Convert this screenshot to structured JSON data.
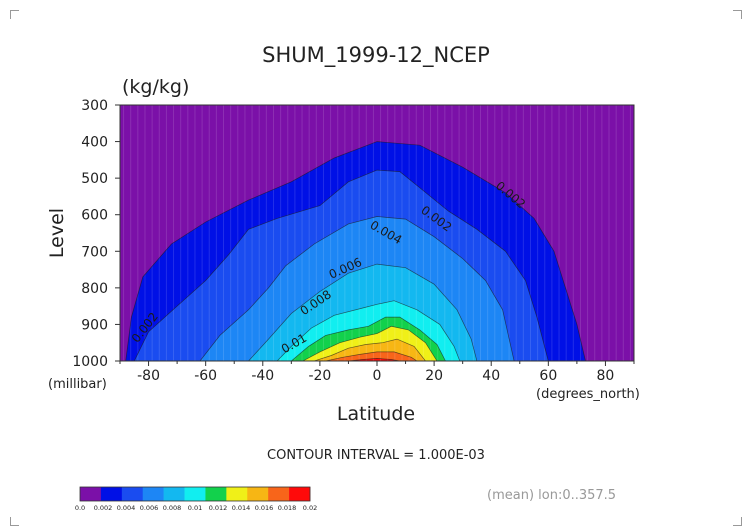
{
  "chart_data": {
    "type": "contour",
    "title": "SHUM_1999-12_NCEP",
    "units": "(kg/kg)",
    "xlabel": "Latitude",
    "ylabel": "Level",
    "x_unit": "(degrees_north)",
    "y_unit": "(millibar)",
    "xlim": [
      -90,
      90
    ],
    "ylim": [
      300,
      1000
    ],
    "x_ticks": [
      -80,
      -60,
      -40,
      -20,
      0,
      20,
      40,
      60,
      80
    ],
    "y_ticks": [
      300,
      400,
      500,
      600,
      700,
      800,
      900,
      1000
    ],
    "contour_interval_text": "CONTOUR INTERVAL = 1.000E-03",
    "subtitle_right": "(mean) lon:0..357.5",
    "levels": [
      0.0,
      0.002,
      0.004,
      0.006,
      0.008,
      0.01,
      0.012,
      0.014,
      0.016,
      0.018,
      0.02
    ],
    "level_labels": [
      "0.0",
      "0.002",
      "0.004",
      "0.006",
      "0.008",
      "0.01",
      "0.012",
      "0.014",
      "0.016",
      "0.018",
      "0.02"
    ],
    "colors": [
      "#7b10a8",
      "#0010e6",
      "#1a4cf0",
      "#1d86f5",
      "#13b8f0",
      "#11eef0",
      "#12d14c",
      "#f0f018",
      "#f7b614",
      "#f8651a",
      "#ff0a0a"
    ],
    "contour_labels": [
      "0.002",
      "0.004",
      "0.006",
      "0.008",
      "0.01",
      "0.002",
      "0.002"
    ],
    "boundaries": [
      {
        "level": 0.002,
        "points": [
          [
            -88,
            1000
          ],
          [
            -86,
            880
          ],
          [
            -82,
            770
          ],
          [
            -72,
            680
          ],
          [
            -60,
            620
          ],
          [
            -45,
            560
          ],
          [
            -30,
            510
          ],
          [
            -15,
            445
          ],
          [
            0,
            400
          ],
          [
            15,
            410
          ],
          [
            30,
            470
          ],
          [
            45,
            540
          ],
          [
            55,
            610
          ],
          [
            62,
            700
          ],
          [
            66,
            800
          ],
          [
            70,
            900
          ],
          [
            73,
            1000
          ]
        ]
      },
      {
        "level": 0.004,
        "points": [
          [
            -85,
            1000
          ],
          [
            -80,
            920
          ],
          [
            -70,
            850
          ],
          [
            -60,
            780
          ],
          [
            -52,
            710
          ],
          [
            -45,
            640
          ],
          [
            -35,
            610
          ],
          [
            -20,
            575
          ],
          [
            -10,
            510
          ],
          [
            0,
            478
          ],
          [
            8,
            482
          ],
          [
            14,
            520
          ],
          [
            25,
            590
          ],
          [
            35,
            640
          ],
          [
            45,
            700
          ],
          [
            52,
            780
          ],
          [
            56,
            880
          ],
          [
            60,
            1000
          ]
        ]
      },
      {
        "level": 0.006,
        "points": [
          [
            -62,
            1000
          ],
          [
            -55,
            930
          ],
          [
            -45,
            860
          ],
          [
            -38,
            800
          ],
          [
            -32,
            740
          ],
          [
            -22,
            680
          ],
          [
            -10,
            625
          ],
          [
            0,
            605
          ],
          [
            10,
            612
          ],
          [
            20,
            660
          ],
          [
            30,
            720
          ],
          [
            38,
            780
          ],
          [
            44,
            860
          ],
          [
            48,
            1000
          ]
        ]
      },
      {
        "level": 0.008,
        "points": [
          [
            -45,
            1000
          ],
          [
            -38,
            940
          ],
          [
            -30,
            870
          ],
          [
            -20,
            810
          ],
          [
            -10,
            760
          ],
          [
            0,
            735
          ],
          [
            10,
            745
          ],
          [
            20,
            790
          ],
          [
            28,
            860
          ],
          [
            33,
            940
          ],
          [
            35,
            1000
          ]
        ]
      },
      {
        "level": 0.01,
        "points": [
          [
            -35,
            1000
          ],
          [
            -30,
            960
          ],
          [
            -23,
            910
          ],
          [
            -15,
            875
          ],
          [
            -5,
            855
          ],
          [
            0,
            845
          ],
          [
            6,
            835
          ],
          [
            14,
            860
          ],
          [
            22,
            900
          ],
          [
            27,
            960
          ],
          [
            29,
            1000
          ]
        ]
      },
      {
        "level": 0.012,
        "points": [
          [
            -30,
            1000
          ],
          [
            -24,
            960
          ],
          [
            -18,
            930
          ],
          [
            -10,
            915
          ],
          [
            -3,
            905
          ],
          [
            3,
            880
          ],
          [
            8,
            880
          ],
          [
            15,
            915
          ],
          [
            21,
            955
          ],
          [
            24,
            1000
          ]
        ]
      },
      {
        "level": 0.014,
        "points": [
          [
            -26,
            1000
          ],
          [
            -20,
            975
          ],
          [
            -13,
            950
          ],
          [
            -6,
            935
          ],
          [
            0,
            925
          ],
          [
            5,
            905
          ],
          [
            11,
            915
          ],
          [
            17,
            950
          ],
          [
            21,
            1000
          ]
        ]
      },
      {
        "level": 0.016,
        "points": [
          [
            -22,
            1000
          ],
          [
            -16,
            985
          ],
          [
            -10,
            965
          ],
          [
            -4,
            955
          ],
          [
            2,
            950
          ],
          [
            7,
            940
          ],
          [
            13,
            960
          ],
          [
            17,
            1000
          ]
        ]
      },
      {
        "level": 0.018,
        "points": [
          [
            -18,
            1000
          ],
          [
            -12,
            990
          ],
          [
            -6,
            982
          ],
          [
            0,
            975
          ],
          [
            6,
            975
          ],
          [
            12,
            990
          ],
          [
            14,
            1000
          ]
        ]
      },
      {
        "level": 0.02,
        "points": [
          [
            -10,
            1000
          ],
          [
            -5,
            996
          ],
          [
            0,
            993
          ],
          [
            5,
            996
          ],
          [
            8,
            1000
          ]
        ]
      }
    ]
  }
}
